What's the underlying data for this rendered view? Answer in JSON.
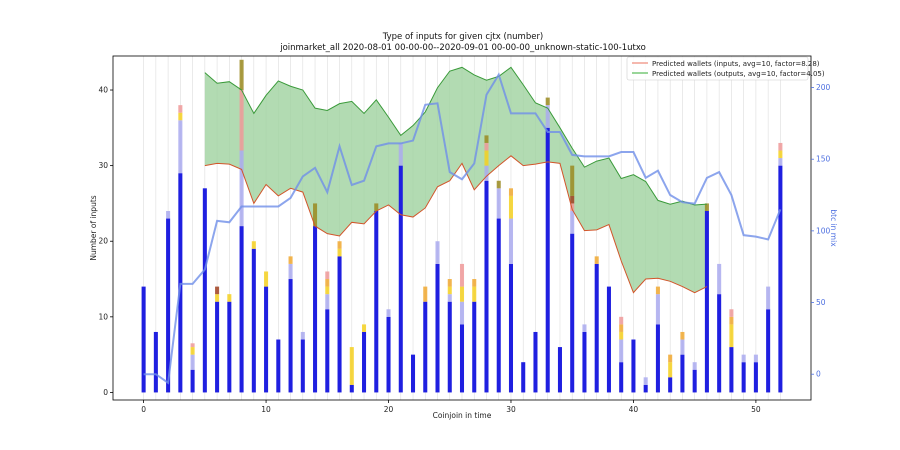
{
  "chart_data": {
    "type": "bar",
    "title": "Type of inputs for given cjtx (number)",
    "subtitle": "joinmarket_all 2020-08-01 00-00-00--2020-09-01 00-00-00_unknown-static-100-1utxo",
    "xlabel": "Coinjoin in time",
    "ylabel": "Number of inputs",
    "y2label": "btc in mix",
    "xlim": [
      -2.5,
      54.5
    ],
    "ylim": [
      -1,
      44.5
    ],
    "y2lim": [
      -18,
      222
    ],
    "xticks": [
      0,
      10,
      20,
      30,
      40,
      50
    ],
    "yticks": [
      0,
      10,
      20,
      30,
      40
    ],
    "y2ticks": [
      0,
      50,
      100,
      150,
      200
    ],
    "grid": "vertical",
    "legend_position": "top-right",
    "colors": {
      "fresh": "#1f1fe0",
      "light_blue": "#aaaaee",
      "yellow": "#f5d020",
      "orange": "#f0a830",
      "pink": "#ee9999",
      "brown": "#a04020",
      "olive": "#9a8a20",
      "inputs_line": "#d2552a",
      "outputs_line": "#3a9a3a",
      "fill": "#9fd29f",
      "btc_line": "#6f8fe8"
    },
    "stack_order": [
      "fresh",
      "light_blue",
      "yellow",
      "orange",
      "pink",
      "brown",
      "olive"
    ],
    "bars": [
      {
        "x": 0,
        "fresh": 14
      },
      {
        "x": 1,
        "fresh": 8
      },
      {
        "x": 2,
        "fresh": 23,
        "light_blue": 1
      },
      {
        "x": 3,
        "fresh": 29,
        "light_blue": 7,
        "yellow": 1,
        "pink": 1
      },
      {
        "x": 4,
        "fresh": 3,
        "light_blue": 2,
        "yellow": 1,
        "pink": 0.5
      },
      {
        "x": 5,
        "fresh": 27
      },
      {
        "x": 6,
        "fresh": 12,
        "yellow": 1,
        "brown": 1
      },
      {
        "x": 7,
        "fresh": 12,
        "yellow": 1
      },
      {
        "x": 8,
        "fresh": 22,
        "light_blue": 10,
        "olive": 4,
        "pink": 8
      },
      {
        "x": 9,
        "fresh": 19,
        "yellow": 1
      },
      {
        "x": 10,
        "fresh": 14,
        "yellow": 2
      },
      {
        "x": 11,
        "fresh": 7
      },
      {
        "x": 12,
        "fresh": 15,
        "light_blue": 2,
        "orange": 1
      },
      {
        "x": 13,
        "fresh": 7,
        "light_blue": 1
      },
      {
        "x": 14,
        "fresh": 22,
        "olive": 3
      },
      {
        "x": 15,
        "fresh": 11,
        "light_blue": 2,
        "yellow": 1,
        "orange": 1,
        "pink": 1
      },
      {
        "x": 16,
        "fresh": 18,
        "yellow": 1,
        "orange": 1
      },
      {
        "x": 17,
        "fresh": 1,
        "yellow": 5
      },
      {
        "x": 18,
        "fresh": 8,
        "yellow": 1
      },
      {
        "x": 19,
        "fresh": 24,
        "olive": 1
      },
      {
        "x": 20,
        "fresh": 10,
        "light_blue": 1
      },
      {
        "x": 21,
        "fresh": 30,
        "light_blue": 3
      },
      {
        "x": 22,
        "fresh": 5
      },
      {
        "x": 23,
        "fresh": 12,
        "orange": 2
      },
      {
        "x": 24,
        "fresh": 17,
        "light_blue": 3
      },
      {
        "x": 25,
        "fresh": 12,
        "light_blue": 1,
        "yellow": 1,
        "orange": 1
      },
      {
        "x": 26,
        "fresh": 9,
        "light_blue": 3,
        "yellow": 2,
        "pink": 3
      },
      {
        "x": 27,
        "fresh": 12,
        "yellow": 2,
        "orange": 1
      },
      {
        "x": 28,
        "fresh": 28,
        "light_blue": 2,
        "yellow": 2,
        "pink": 1,
        "olive": 1
      },
      {
        "x": 29,
        "fresh": 23,
        "light_blue": 4,
        "olive": 1
      },
      {
        "x": 30,
        "fresh": 17,
        "light_blue": 6,
        "yellow": 3,
        "orange": 1
      },
      {
        "x": 31,
        "fresh": 4
      },
      {
        "x": 32,
        "fresh": 8
      },
      {
        "x": 33,
        "fresh": 35,
        "light_blue": 3,
        "olive": 1
      },
      {
        "x": 34,
        "fresh": 6
      },
      {
        "x": 35,
        "fresh": 21,
        "light_blue": 3,
        "olive": 4,
        "pink": 1,
        "brown": 1
      },
      {
        "x": 36,
        "fresh": 8,
        "light_blue": 1
      },
      {
        "x": 37,
        "fresh": 17,
        "orange": 1
      },
      {
        "x": 38,
        "fresh": 14
      },
      {
        "x": 39,
        "fresh": 4,
        "light_blue": 3,
        "yellow": 1,
        "orange": 1,
        "pink": 1
      },
      {
        "x": 40,
        "fresh": 7
      },
      {
        "x": 41,
        "fresh": 1,
        "light_blue": 1
      },
      {
        "x": 42,
        "fresh": 9,
        "light_blue": 4,
        "orange": 1
      },
      {
        "x": 43,
        "fresh": 2,
        "yellow": 2,
        "orange": 1
      },
      {
        "x": 44,
        "fresh": 5,
        "light_blue": 2,
        "orange": 1
      },
      {
        "x": 45,
        "fresh": 3,
        "light_blue": 1
      },
      {
        "x": 46,
        "fresh": 24,
        "olive": 1
      },
      {
        "x": 47,
        "fresh": 13,
        "light_blue": 4
      },
      {
        "x": 48,
        "fresh": 6,
        "yellow": 3,
        "orange": 1,
        "pink": 1
      },
      {
        "x": 49,
        "fresh": 4,
        "light_blue": 1
      },
      {
        "x": 50,
        "fresh": 4,
        "light_blue": 1
      },
      {
        "x": 51,
        "fresh": 11,
        "light_blue": 3
      },
      {
        "x": 52,
        "fresh": 30,
        "light_blue": 1,
        "yellow": 1,
        "pink": 1
      }
    ],
    "series": [
      {
        "name": "Predicted wallets (inputs, avg=10, factor=8.28)",
        "x": [
          5,
          6,
          7,
          8,
          9,
          10,
          11,
          12,
          13,
          14,
          15,
          16,
          17,
          18,
          19,
          20,
          21,
          22,
          23,
          24,
          25,
          26,
          27,
          28,
          29,
          30,
          31,
          32,
          33,
          34,
          35,
          36,
          37,
          38,
          39,
          40,
          41,
          42,
          43,
          44,
          45,
          46
        ],
        "values": [
          30.0,
          30.3,
          30.2,
          29.5,
          25.0,
          27.5,
          26.0,
          27.0,
          26.5,
          22.0,
          21.0,
          20.7,
          22.5,
          22.3,
          24.0,
          24.8,
          23.5,
          23.2,
          24.4,
          27.2,
          28.0,
          30.3,
          26.8,
          28.6,
          30.0,
          31.3,
          30.0,
          30.2,
          30.5,
          30.3,
          24.2,
          21.4,
          21.5,
          22.2,
          17.4,
          13.2,
          15.0,
          15.1,
          14.7,
          14.0,
          13.2,
          14.0
        ]
      },
      {
        "name": "Predicted wallets (outputs, avg=10, factor=4.05)",
        "x": [
          5,
          6,
          7,
          8,
          9,
          10,
          11,
          12,
          13,
          14,
          15,
          16,
          17,
          18,
          19,
          20,
          21,
          22,
          23,
          24,
          25,
          26,
          27,
          28,
          29,
          30,
          31,
          32,
          33,
          34,
          35,
          36,
          37,
          38,
          39,
          40,
          41,
          42,
          43,
          44,
          45,
          46
        ],
        "values": [
          42.3,
          40.9,
          41.1,
          40.0,
          36.9,
          39.3,
          41.2,
          40.5,
          40.0,
          37.6,
          37.3,
          38.2,
          38.5,
          36.9,
          38.7,
          36.4,
          34.0,
          35.3,
          37.1,
          40.3,
          42.5,
          43.0,
          42.0,
          41.3,
          41.8,
          43.0,
          40.7,
          38.3,
          37.6,
          35.0,
          32.3,
          29.8,
          30.6,
          31.0,
          28.3,
          28.8,
          27.9,
          25.4,
          24.9,
          25.3,
          24.8,
          24.9
        ]
      }
    ],
    "btc_in_mix": {
      "name": "btc in mix",
      "x": [
        0,
        1,
        2,
        3,
        4,
        5,
        6,
        7,
        8,
        9,
        10,
        11,
        12,
        13,
        14,
        15,
        16,
        17,
        18,
        19,
        20,
        21,
        22,
        23,
        24,
        25,
        26,
        27,
        28,
        29,
        30,
        31,
        32,
        33,
        34,
        35,
        36,
        37,
        38,
        39,
        40,
        41,
        42,
        43,
        44,
        45,
        46,
        47,
        48,
        49,
        50,
        51,
        52
      ],
      "values": [
        0,
        0,
        -6,
        63,
        63,
        73,
        107,
        106,
        117,
        117,
        117,
        117,
        123,
        138,
        144,
        127,
        159,
        132,
        135,
        159,
        161,
        161,
        163,
        188,
        189,
        141,
        136,
        147,
        195,
        209,
        182,
        182,
        182,
        169,
        169,
        153,
        152,
        152,
        152,
        155,
        155,
        137,
        142,
        125,
        120,
        119,
        137,
        141,
        125,
        97,
        96,
        94,
        115
      ]
    }
  }
}
